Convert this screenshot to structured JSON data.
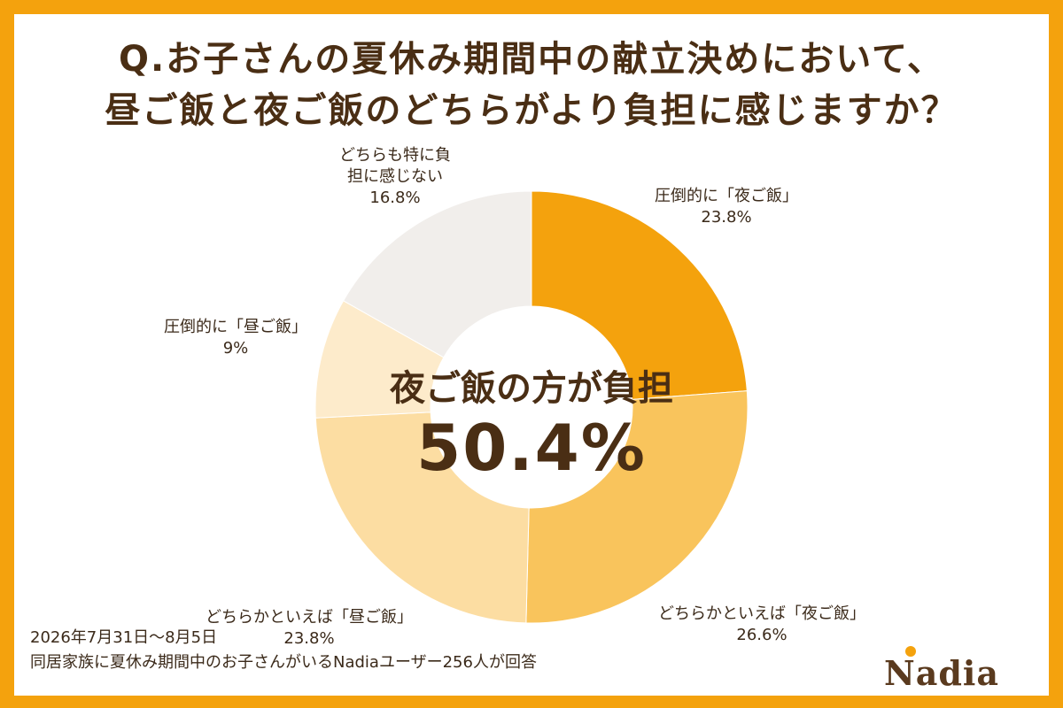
{
  "title": {
    "line1": "Q.お子さんの夏休み期間中の献立決めにおいて、",
    "line2": "昼ご飯と夜ご飯のどちらがより負担に感じますか？"
  },
  "center": {
    "title": "夜ご飯の方が負担",
    "value": "50.4%"
  },
  "footer": {
    "date": "2026年7月31日〜8月5日",
    "note": "同居家族に夏休み期間中のお子さんがいるNadiaユーザー256人が回答"
  },
  "logo": {
    "text": "Nadia"
  },
  "colors": {
    "frame": "#F4A20D",
    "text": "#4A2E14"
  },
  "chart_data": {
    "type": "pie",
    "variant": "donut",
    "categories": [
      "圧倒的に「夜ご飯」",
      "どちらかといえば「夜ご飯」",
      "どちらかといえば「昼ご飯」",
      "圧倒的に「昼ご飯」",
      "どちらも特に負担に感じない"
    ],
    "values": [
      23.8,
      26.6,
      23.8,
      9,
      16.8
    ],
    "value_labels": [
      "23.8%",
      "26.6%",
      "23.8%",
      "9%",
      "16.8%"
    ],
    "label_lines": [
      [
        "圧倒的に「夜ご飯」"
      ],
      [
        "どちらかといえば「夜ご飯」"
      ],
      [
        "どちらかといえば「昼ご飯」"
      ],
      [
        "圧倒的に「昼ご飯」"
      ],
      [
        "どちらも特に負",
        "担に感じない"
      ]
    ],
    "colors": [
      "#F4A20D",
      "#F9C45C",
      "#FCDDA2",
      "#FDEBCB",
      "#F1EEEB"
    ],
    "legend": "none"
  }
}
